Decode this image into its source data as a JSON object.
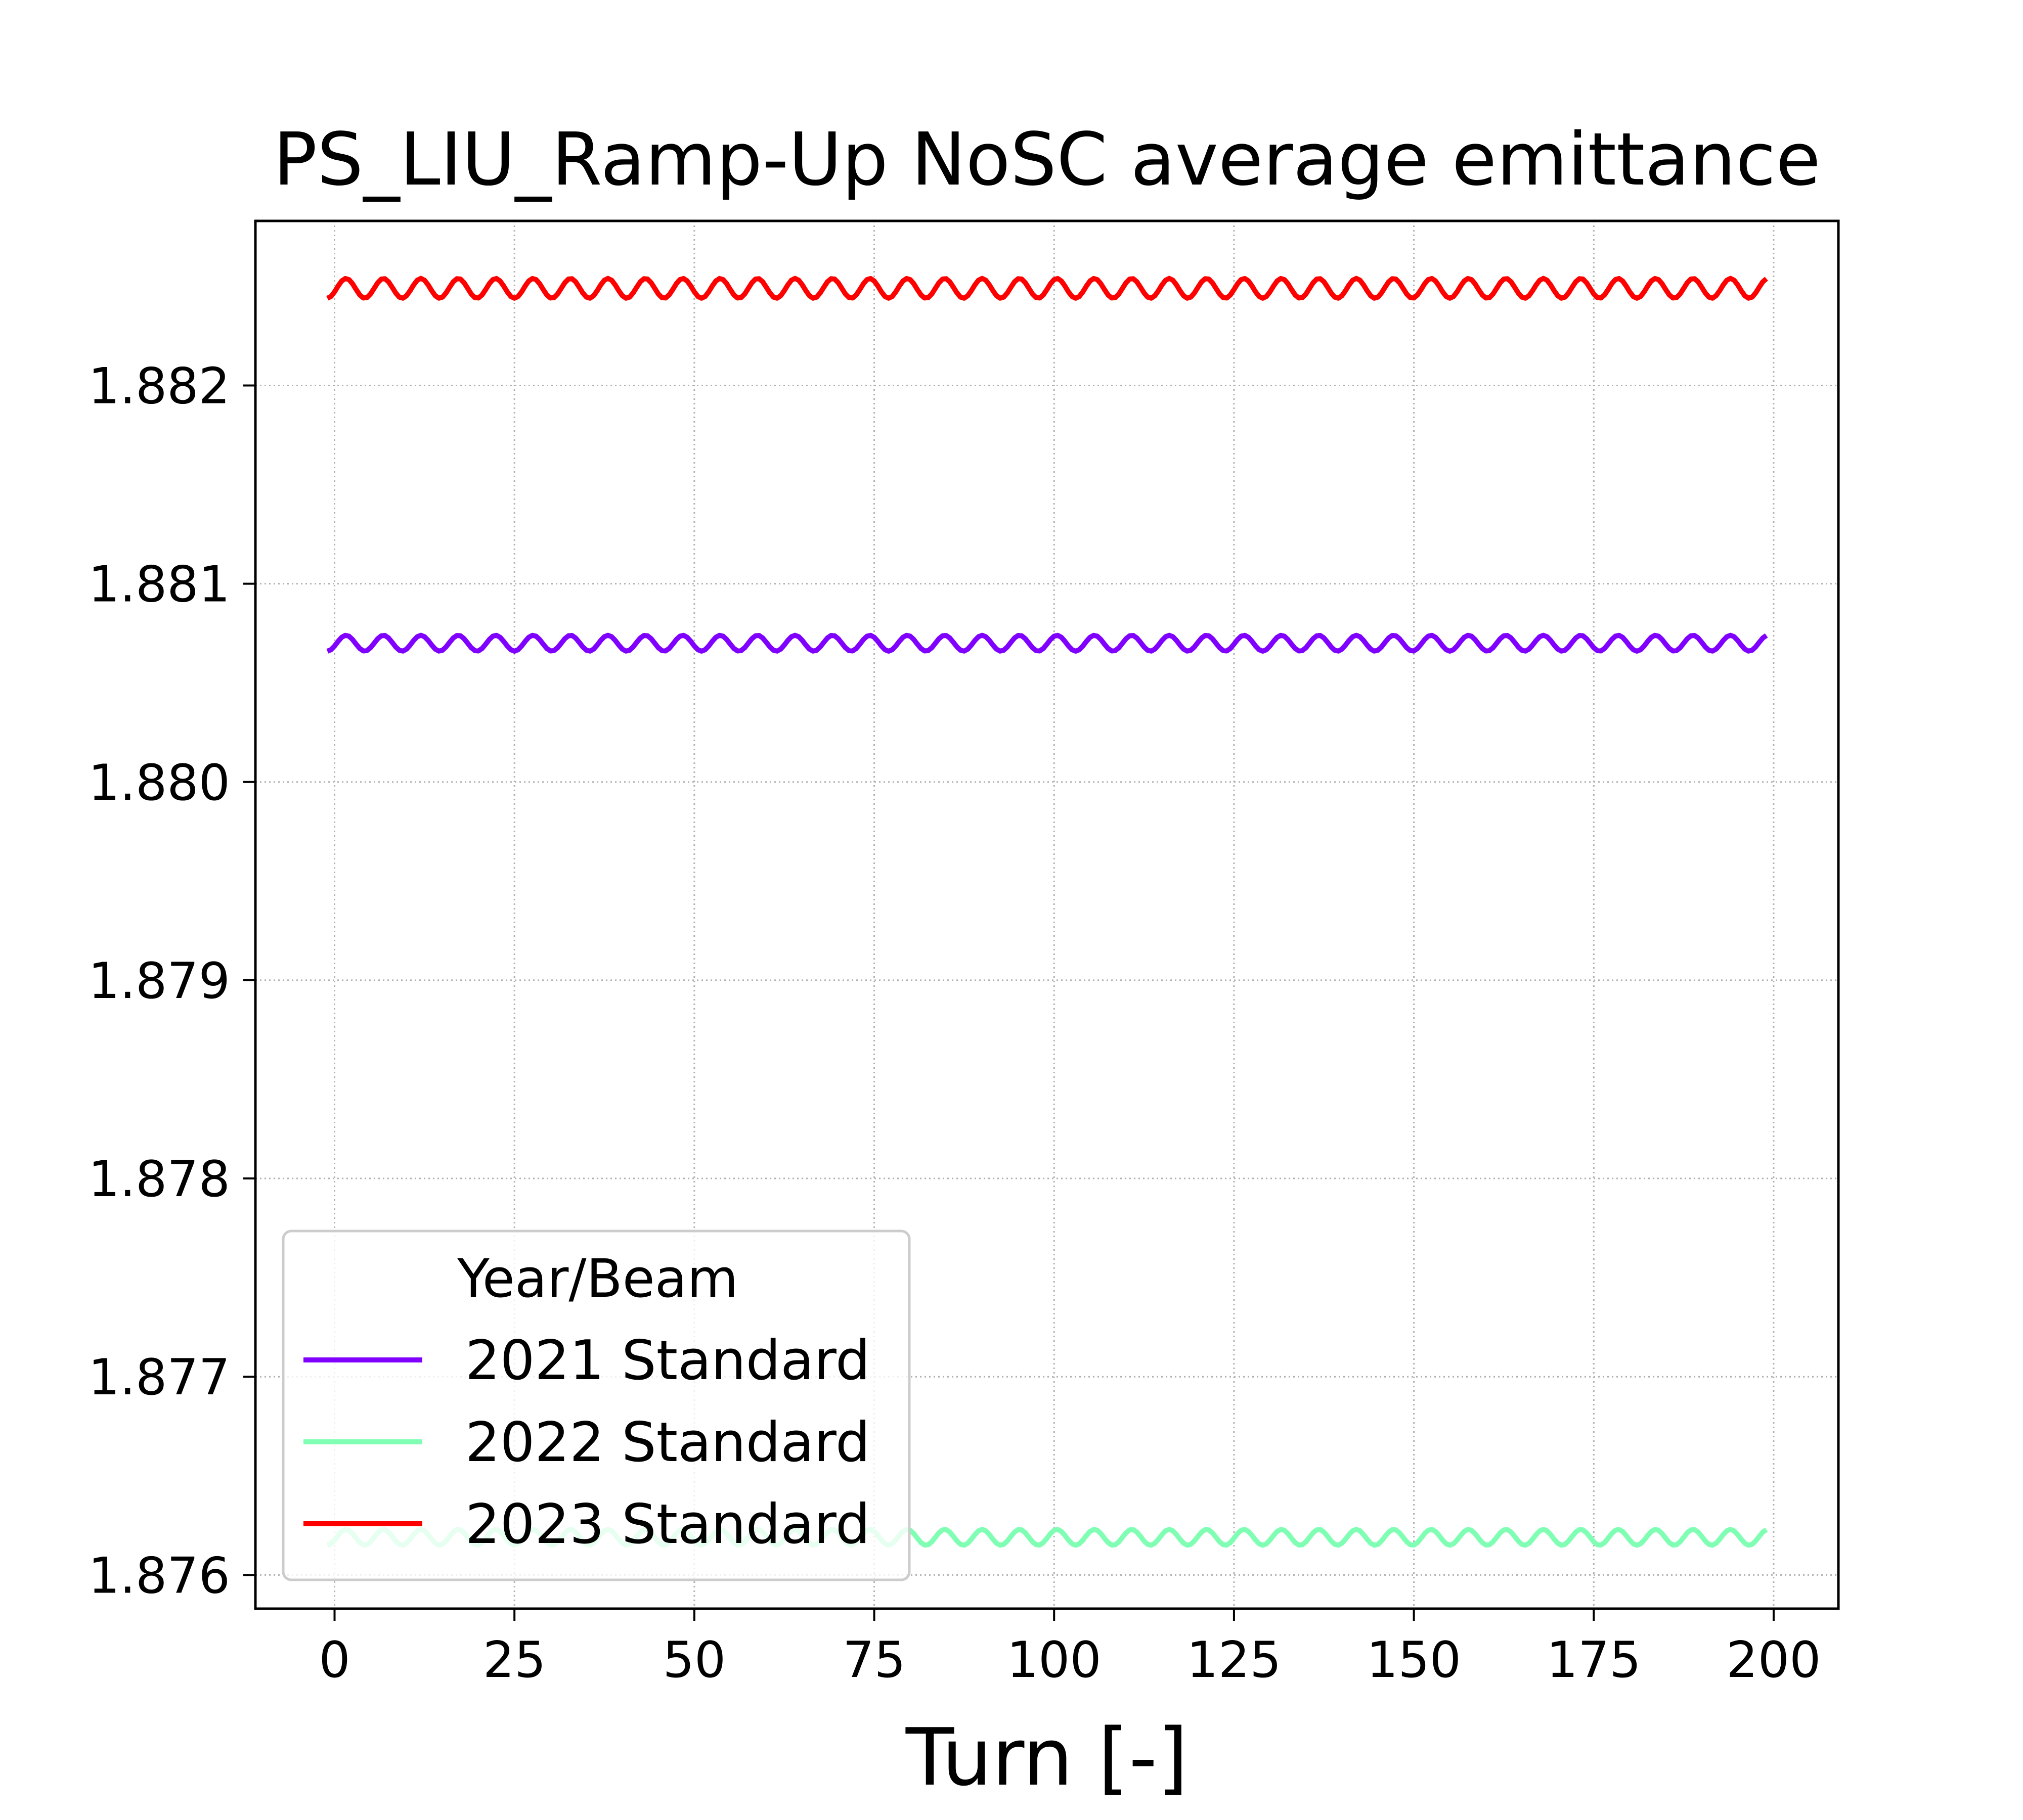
{
  "chart_data": {
    "type": "line",
    "title": "PS_LIU_Ramp-Up NoSC average emittance",
    "xlabel": "Turn [-]",
    "ylabel": "",
    "xlim": [
      -11,
      209
    ],
    "ylim": [
      1.87583,
      1.88283
    ],
    "xticks": [
      0,
      25,
      50,
      75,
      100,
      125,
      150,
      175,
      200
    ],
    "xtick_labels": [
      "0",
      "25",
      "50",
      "75",
      "100",
      "125",
      "150",
      "175",
      "200"
    ],
    "yticks": [
      1.876,
      1.877,
      1.878,
      1.879,
      1.88,
      1.881,
      1.882
    ],
    "ytick_labels": [
      "1.876",
      "1.877",
      "1.878",
      "1.879",
      "1.880",
      "1.881",
      "1.882"
    ],
    "grid": true,
    "legend": {
      "title": "Year/Beam",
      "placement": "lower-left"
    },
    "series": [
      {
        "name": "2021 Standard",
        "color": "#8000ff",
        "mean": 1.8807,
        "amplitude": 4e-05,
        "period": 5.2,
        "x_start": -1,
        "x_end": 199
      },
      {
        "name": "2022 Standard",
        "color": "#80ffb4",
        "mean": 1.87619,
        "amplitude": 4e-05,
        "period": 5.2,
        "x_start": -1,
        "x_end": 199
      },
      {
        "name": "2023 Standard",
        "color": "#ff0000",
        "mean": 1.88249,
        "amplitude": 5e-05,
        "period": 5.2,
        "x_start": -1,
        "x_end": 199
      }
    ]
  }
}
